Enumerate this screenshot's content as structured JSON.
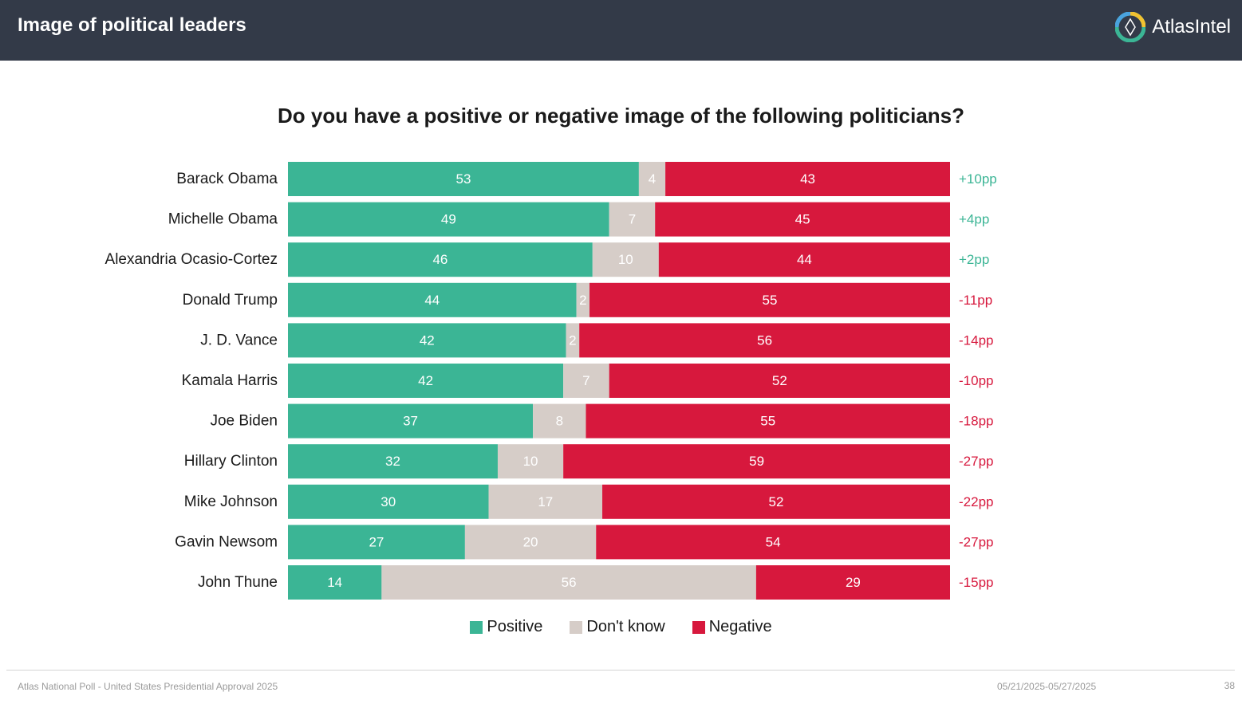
{
  "header": {
    "title": "Image of political leaders",
    "logo_text": "AtlasIntel"
  },
  "colors": {
    "positive": "#3bb595",
    "dont_know": "#d6cdc8",
    "negative": "#d7183d",
    "net_positive": "#3bb595",
    "net_negative": "#d7183d",
    "header_bg": "#333a48"
  },
  "chart_data": {
    "type": "bar",
    "orientation": "horizontal",
    "stacked": true,
    "title": "Do you have a positive or negative image of the following politicians?",
    "categories": [
      "Barack Obama",
      "Michelle Obama",
      "Alexandria Ocasio-Cortez",
      "Donald Trump",
      "J. D. Vance",
      "Kamala Harris",
      "Joe Biden",
      "Hillary Clinton",
      "Mike Johnson",
      "Gavin Newsom",
      "John Thune"
    ],
    "series": [
      {
        "name": "Positive",
        "values": [
          53,
          49,
          46,
          44,
          42,
          42,
          37,
          32,
          30,
          27,
          14
        ]
      },
      {
        "name": "Don't know",
        "values": [
          4,
          7,
          10,
          2,
          2,
          7,
          8,
          10,
          17,
          20,
          56
        ]
      },
      {
        "name": "Negative",
        "values": [
          43,
          45,
          44,
          55,
          56,
          52,
          55,
          59,
          52,
          54,
          29
        ]
      }
    ],
    "net": [
      "+10pp",
      "+4pp",
      "+2pp",
      "-11pp",
      "-14pp",
      "-10pp",
      "-18pp",
      "-27pp",
      "-22pp",
      "-27pp",
      "-15pp"
    ],
    "legend": {
      "position": "bottom"
    },
    "xlabel": "",
    "ylabel": ""
  },
  "footer": {
    "source": "Atlas National Poll - United States Presidential Approval 2025",
    "dates": "05/21/2025-05/27/2025",
    "page": "38"
  }
}
